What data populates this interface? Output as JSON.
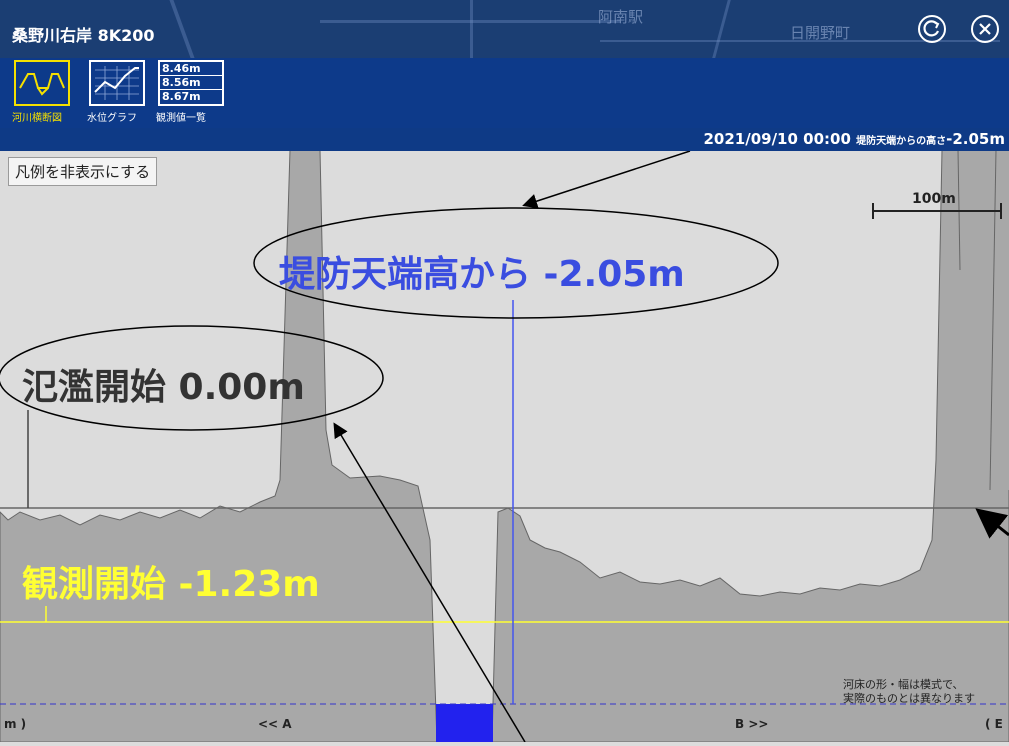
{
  "header": {
    "title": "桑野川右岸 8K200",
    "map_labels": [
      "阿南駅",
      "日開野町"
    ]
  },
  "modes": [
    {
      "label": "河川横断図",
      "icon": "cross-section-icon",
      "active": true
    },
    {
      "label": "水位グラフ",
      "icon": "line-graph-icon",
      "active": false
    },
    {
      "label": "観測値一覧",
      "icon": "value-list-icon",
      "active": false,
      "values": [
        "8.46m",
        "8.56m",
        "8.67m"
      ]
    }
  ],
  "status": {
    "datetime": "2021/09/10 00:00",
    "label": "堤防天端からの高さ",
    "value": "-2.05m"
  },
  "chart": {
    "legend_toggle": "凡例を非表示にする",
    "scale_label": "100m",
    "dike_annotation": "堤防天端高から -2.05m",
    "flood_annotation": "氾濫開始 0.00m",
    "observation_annotation": "観測開始 -1.23m",
    "note_lines": [
      "河床の形・幅は模式で、",
      "実際のものとは異なります"
    ],
    "nav_left_cut": "m )",
    "nav_a": "<< A",
    "nav_b": "B >>",
    "nav_right_cut": "( E"
  },
  "colors": {
    "header": "#0e3a86",
    "ground": "#a8a8a8",
    "sky": "#dcdcdc",
    "water": "#2222ee",
    "dike_text": "#3a4de0",
    "observation": "#ffff33",
    "flood_text": "#333333"
  }
}
